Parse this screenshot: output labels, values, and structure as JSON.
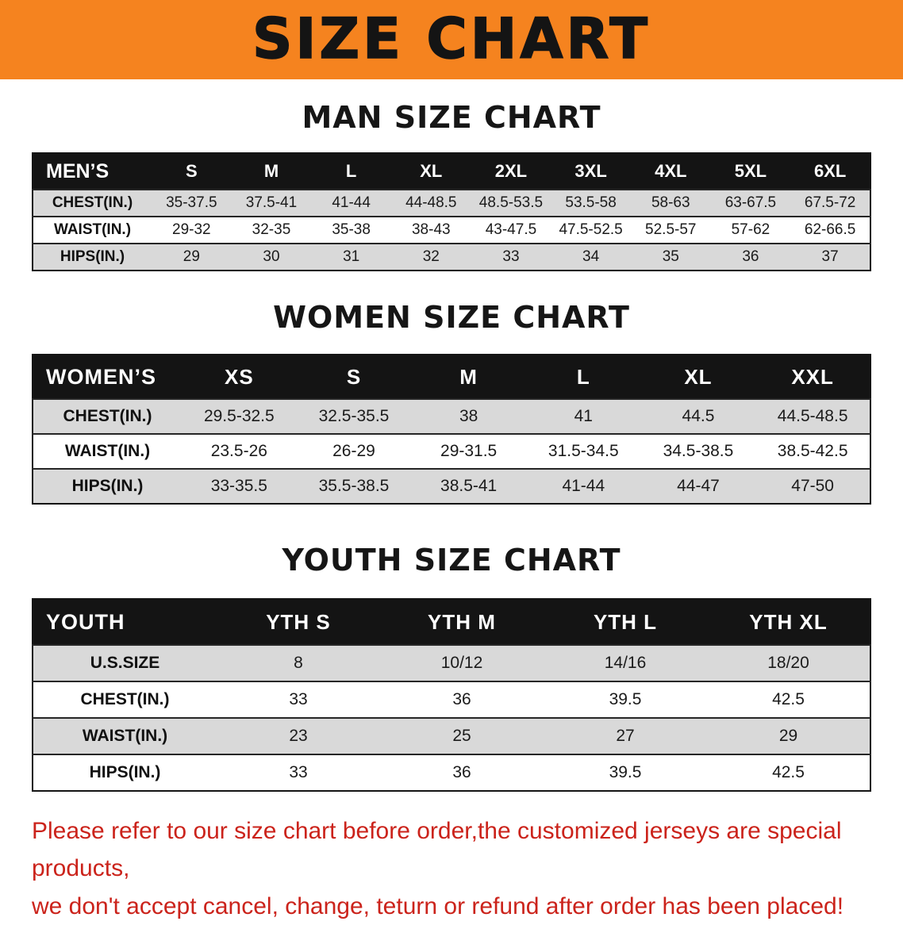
{
  "colors": {
    "banner_bg": "#f5831f",
    "header_bg": "#141414",
    "row_alt_bg": "#d9d9d9",
    "notice_text": "#cb231b"
  },
  "banner": {
    "title": "SIZE CHART"
  },
  "sections": [
    {
      "heading": "MAN SIZE CHART",
      "table": {
        "header": [
          "MEN’S",
          "S",
          "M",
          "L",
          "XL",
          "2XL",
          "3XL",
          "4XL",
          "5XL",
          "6XL"
        ],
        "rows": [
          [
            "CHEST(IN.)",
            "35-37.5",
            "37.5-41",
            "41-44",
            "44-48.5",
            "48.5-53.5",
            "53.5-58",
            "58-63",
            "63-67.5",
            "67.5-72"
          ],
          [
            "WAIST(IN.)",
            "29-32",
            "32-35",
            "35-38",
            "38-43",
            "43-47.5",
            "47.5-52.5",
            "52.5-57",
            "57-62",
            "62-66.5"
          ],
          [
            "HIPS(IN.)",
            "29",
            "30",
            "31",
            "32",
            "33",
            "34",
            "35",
            "36",
            "37"
          ]
        ]
      }
    },
    {
      "heading": "WOMEN SIZE CHART",
      "table": {
        "header": [
          "WOMEN’S",
          "XS",
          "S",
          "M",
          "L",
          "XL",
          "XXL"
        ],
        "rows": [
          [
            "CHEST(IN.)",
            "29.5-32.5",
            "32.5-35.5",
            "38",
            "41",
            "44.5",
            "44.5-48.5"
          ],
          [
            "WAIST(IN.)",
            "23.5-26",
            "26-29",
            "29-31.5",
            "31.5-34.5",
            "34.5-38.5",
            "38.5-42.5"
          ],
          [
            "HIPS(IN.)",
            "33-35.5",
            "35.5-38.5",
            "38.5-41",
            "41-44",
            "44-47",
            "47-50"
          ]
        ]
      }
    },
    {
      "heading": "YOUTH SIZE CHART",
      "table": {
        "header": [
          "YOUTH",
          "YTH S",
          "YTH M",
          "YTH L",
          "YTH XL"
        ],
        "rows": [
          [
            "U.S.SIZE",
            "8",
            "10/12",
            "14/16",
            "18/20"
          ],
          [
            "CHEST(IN.)",
            "33",
            "36",
            "39.5",
            "42.5"
          ],
          [
            "WAIST(IN.)",
            "23",
            "25",
            "27",
            "29"
          ],
          [
            "HIPS(IN.)",
            "33",
            "36",
            "39.5",
            "42.5"
          ]
        ]
      }
    }
  ],
  "footer": {
    "line1": "Please refer to our size chart before order,the customized jerseys are special products,",
    "line2": "we don't accept cancel, change, teturn or refund after order has been placed!"
  }
}
